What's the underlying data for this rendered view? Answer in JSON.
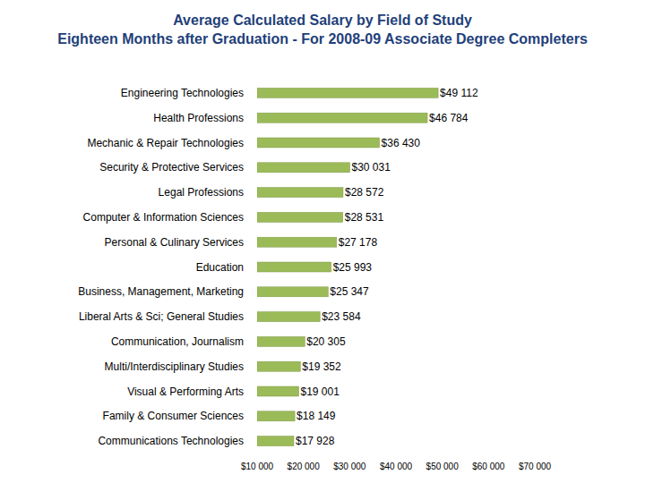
{
  "chart_data": {
    "type": "bar",
    "orientation": "horizontal",
    "title": "Average Calculated Salary by Field of Study",
    "subtitle": "Eighteen Months after Graduation - For 2008-09 Associate Degree Completers",
    "categories": [
      "Engineering Technologies",
      "Health Professions",
      "Mechanic & Repair Technologies",
      "Security & Protective Services",
      "Legal Professions",
      "Computer & Information Sciences",
      "Personal & Culinary Services",
      "Education",
      "Business, Management, Marketing",
      "Liberal Arts & Sci; General Studies",
      "Communication, Journalism",
      "Multi/Interdisciplinary Studies",
      "Visual & Performing Arts",
      "Family & Consumer Sciences",
      "Communications Technologies"
    ],
    "values": [
      49112,
      46784,
      36430,
      30031,
      28572,
      28531,
      27178,
      25993,
      25347,
      23584,
      20305,
      19352,
      19001,
      18149,
      17928
    ],
    "value_labels": [
      "$49 112",
      "$46 784",
      "$36 430",
      "$30 031",
      "$28 572",
      "$28 531",
      "$27 178",
      "$25 993",
      "$25 347",
      "$23 584",
      "$20 305",
      "$19 352",
      "$19 001",
      "$18 149",
      "$17 928"
    ],
    "data_labels": true,
    "color": "#9bbb59",
    "grid": false,
    "xlim": [
      10000,
      70000
    ],
    "xticks": [
      {
        "value": 10000,
        "label": "$10 000"
      },
      {
        "value": 20000,
        "label": "$20 000"
      },
      {
        "value": 30000,
        "label": "$30 000"
      },
      {
        "value": 40000,
        "label": "$40 000"
      },
      {
        "value": 50000,
        "label": "$50 000"
      },
      {
        "value": 60000,
        "label": "$60 000"
      },
      {
        "value": 70000,
        "label": "$70 000"
      }
    ]
  }
}
